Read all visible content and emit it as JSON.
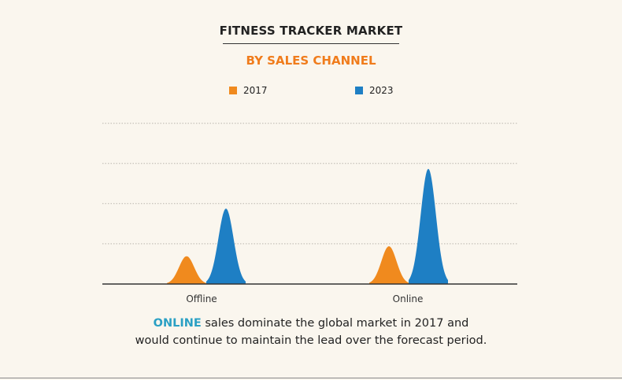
{
  "chart_data": {
    "type": "area",
    "title": "FITNESS TRACKER MARKET",
    "subtitle": "BY SALES CHANNEL",
    "categories": [
      "Offline",
      "Online"
    ],
    "series": [
      {
        "name": "2017",
        "color": "#f08a1e",
        "values": [
          0.7,
          0.95
        ]
      },
      {
        "name": "2023",
        "color": "#1e7fc4",
        "values": [
          1.9,
          2.9
        ]
      }
    ],
    "ylim": [
      0,
      4.2
    ],
    "grid": true,
    "legend_position": "top-center"
  },
  "colors": {
    "subtitle": "#f07c1c",
    "highlight": "#2aa0c4",
    "background": "#faf6ee"
  },
  "caption": {
    "highlight": "ONLINE",
    "line1_rest": " sales dominate the global market in 2017 and",
    "line2": "would continue to maintain the lead over the forecast period."
  }
}
